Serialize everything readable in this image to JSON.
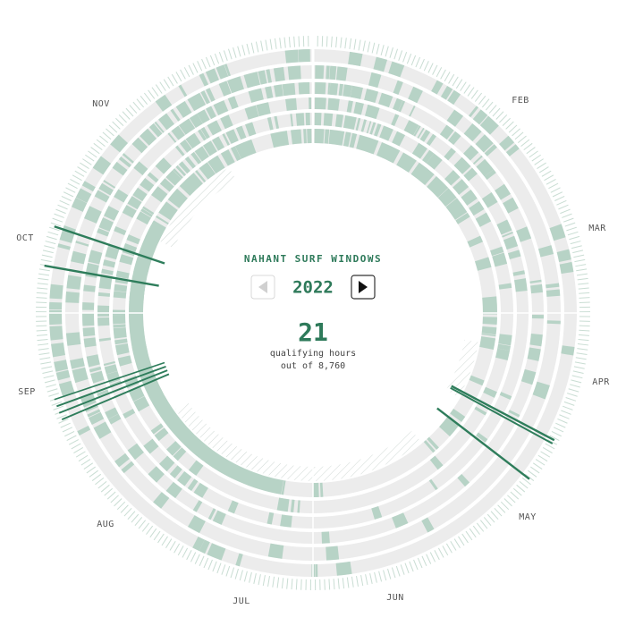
{
  "header": {
    "title": "NAHANT SURF WINDOWS",
    "year": "2022"
  },
  "summary": {
    "count": 21,
    "line1": "qualifying hours",
    "line2": "out of 8,760"
  },
  "months": [
    "FEB",
    "MAR",
    "APR",
    "MAY",
    "JUN",
    "JUL",
    "AUG",
    "SEP",
    "OCT",
    "NOV"
  ]
}
